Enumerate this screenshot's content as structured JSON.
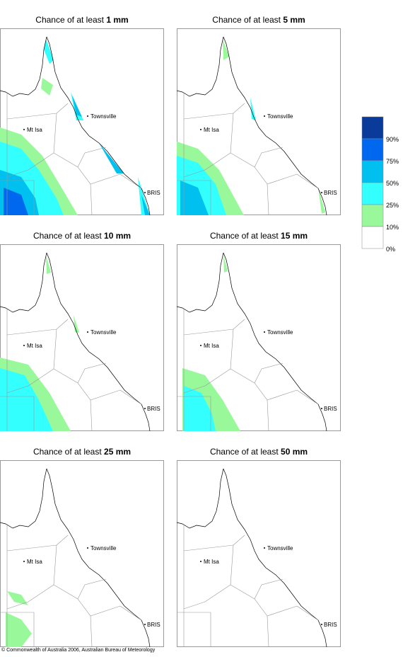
{
  "panels": [
    {
      "prefix": "Chance of at least ",
      "amount": "1 mm"
    },
    {
      "prefix": "Chance of at least ",
      "amount": "5 mm"
    },
    {
      "prefix": "Chance of at least ",
      "amount": "10 mm"
    },
    {
      "prefix": "Chance of at least ",
      "amount": "15 mm"
    },
    {
      "prefix": "Chance of at least ",
      "amount": "25 mm"
    },
    {
      "prefix": "Chance of at least ",
      "amount": "50 mm"
    }
  ],
  "places": [
    "Townsville",
    "Mt Isa",
    "BRIS"
  ],
  "legend": {
    "labels": [
      "90%",
      "75%",
      "50%",
      "25%",
      "10%",
      "0%"
    ],
    "colors": [
      "#0a3a9a",
      "#0068ee",
      "#00c0f0",
      "#33ffff",
      "#99f899",
      "#ffffff"
    ]
  },
  "copyright": "© Commonwealth of Australia 2006, Australian Bureau of Meteorology"
}
